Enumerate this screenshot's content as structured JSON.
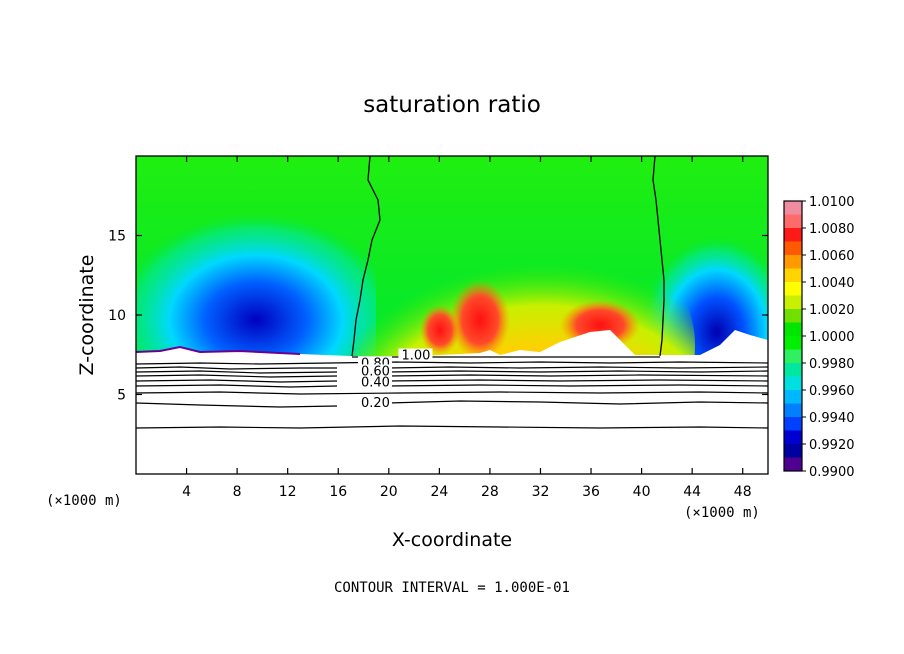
{
  "chart_data": {
    "type": "heatmap",
    "title": "saturation ratio",
    "xlabel": "X-coordinate",
    "ylabel": "Z-coordinate",
    "x_unit_left": "(×1000 m)",
    "x_unit_right": "(×1000 m)",
    "footer": "CONTOUR INTERVAL = 1.000E-01",
    "xlim": [
      0,
      50
    ],
    "ylim": [
      0,
      20
    ],
    "x_ticks": [
      {
        "v": 4,
        "label": "4"
      },
      {
        "v": 8,
        "label": "8"
      },
      {
        "v": 12,
        "label": "12"
      },
      {
        "v": 16,
        "label": "16"
      },
      {
        "v": 20,
        "label": "20"
      },
      {
        "v": 24,
        "label": "24"
      },
      {
        "v": 28,
        "label": "28"
      },
      {
        "v": 32,
        "label": "32"
      },
      {
        "v": 36,
        "label": "36"
      },
      {
        "v": 40,
        "label": "40"
      },
      {
        "v": 44,
        "label": "44"
      },
      {
        "v": 48,
        "label": "48"
      }
    ],
    "y_ticks": [
      {
        "v": 5,
        "label": "5"
      },
      {
        "v": 10,
        "label": "10"
      },
      {
        "v": 15,
        "label": "15"
      }
    ],
    "colorbar": {
      "min": 0.99,
      "max": 1.01,
      "labels": [
        "1.0100",
        "1.0080",
        "1.0060",
        "1.0040",
        "1.0020",
        "1.0000",
        "0.9980",
        "0.9960",
        "0.9940",
        "0.9920",
        "0.9900"
      ],
      "colors": [
        "#f08ca0",
        "#ff6a6a",
        "#ff1a1a",
        "#ff5a00",
        "#ff9a00",
        "#ffd400",
        "#ffff00",
        "#c8f000",
        "#70e000",
        "#00e600",
        "#00f000",
        "#30f060",
        "#00e8a0",
        "#00e0e0",
        "#00b8ff",
        "#0080ff",
        "#0040ff",
        "#0000d0",
        "#0000a0",
        "#500090"
      ]
    },
    "contours": [
      {
        "level": 1.0,
        "label": "1.00",
        "label_x": 21.0,
        "label_z": 7.2
      },
      {
        "level": 0.8,
        "label": "0.80",
        "label_x": 17.8,
        "label_z": 6.7
      },
      {
        "level": 0.6,
        "label": "0.60",
        "label_x": 17.8,
        "label_z": 6.2
      },
      {
        "level": 0.4,
        "label": "0.40",
        "label_x": 17.8,
        "label_z": 5.5
      },
      {
        "level": 0.2,
        "label": "0.20",
        "label_x": 17.8,
        "label_z": 4.2
      }
    ]
  }
}
